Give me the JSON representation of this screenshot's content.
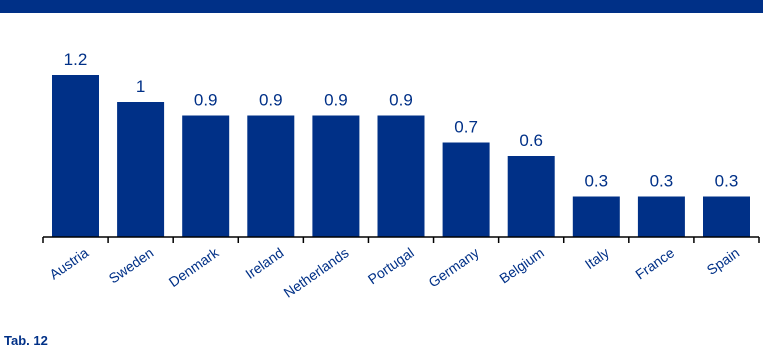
{
  "footnote": "Tab. 12",
  "colors": {
    "band": "#003087",
    "bar": "#003087",
    "label": "#003087",
    "axis": "#000000"
  },
  "chart_data": {
    "type": "bar",
    "categories": [
      "Austria",
      "Sweden",
      "Denmark",
      "Ireland",
      "Netherlands",
      "Portugal",
      "Germany",
      "Belgium",
      "Italy",
      "France",
      "Spain"
    ],
    "values": [
      1.2,
      1,
      0.9,
      0.9,
      0.9,
      0.9,
      0.7,
      0.6,
      0.3,
      0.3,
      0.3
    ],
    "value_labels": [
      "1.2",
      "1",
      "0.9",
      "0.9",
      "0.9",
      "0.9",
      "0.7",
      "0.6",
      "0.3",
      "0.3",
      "0.3"
    ],
    "title": "",
    "xlabel": "",
    "ylabel": "",
    "ylim": [
      0,
      1.2
    ],
    "grid": false,
    "legend": "none"
  }
}
